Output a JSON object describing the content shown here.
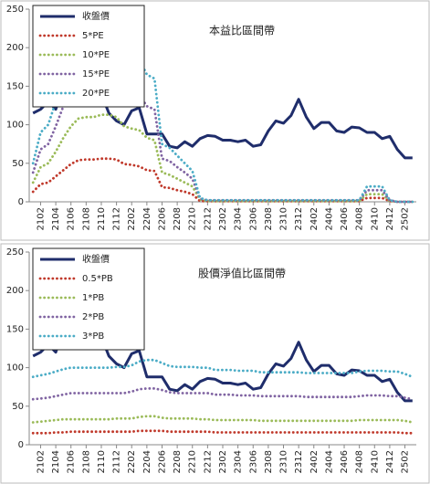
{
  "chart_data": [
    {
      "type": "line",
      "title": "本益比區間帶",
      "categories": [
        null,
        "2102",
        null,
        "2104",
        null,
        "2106",
        null,
        "2108",
        null,
        "2110",
        null,
        "2112",
        null,
        "2202",
        null,
        "2204",
        null,
        "2206",
        null,
        "2208",
        null,
        "2210",
        null,
        "2212",
        null,
        "2302",
        null,
        "2304",
        null,
        "2306",
        null,
        "2308",
        null,
        "2310",
        null,
        "2312",
        null,
        "2402",
        null,
        "2404",
        null,
        "2406",
        null,
        "2408",
        null,
        "2410",
        null,
        "2412",
        null,
        "2502",
        null
      ],
      "ylim": [
        0,
        250
      ],
      "yticks": [
        0,
        50,
        100,
        150,
        200,
        250
      ],
      "grid": false,
      "legend": "upper left",
      "series": [
        {
          "name": "收盤價",
          "color": "#1f2d6b",
          "line_style": "solid",
          "values": [
            115,
            120,
            130,
            120,
            150,
            160,
            150,
            145,
            145,
            140,
            115,
            105,
            100,
            118,
            122,
            88,
            88,
            88,
            72,
            70,
            78,
            72,
            82,
            86,
            85,
            80,
            80,
            78,
            80,
            72,
            74,
            92,
            105,
            102,
            112,
            133,
            110,
            95,
            103,
            103,
            92,
            90,
            97,
            96,
            90,
            90,
            82,
            85,
            68,
            57,
            57
          ]
        },
        {
          "name": "5*PE",
          "color": "#c0392b",
          "line_style": "dotted",
          "values": [
            13,
            23,
            25,
            33,
            41,
            49,
            54,
            55,
            55,
            56,
            56,
            55,
            49,
            48,
            46,
            41,
            40,
            19,
            18,
            15,
            13,
            10,
            1,
            1,
            1,
            1,
            1,
            1,
            1,
            1,
            1,
            1,
            1,
            1,
            1,
            1,
            1,
            1,
            1,
            1,
            1,
            1,
            1,
            1,
            5,
            5,
            5,
            1,
            0,
            0,
            0
          ]
        },
        {
          "name": "10*PE",
          "color": "#9bbb59",
          "line_style": "dotted",
          "values": [
            25,
            45,
            50,
            65,
            83,
            98,
            108,
            110,
            110,
            113,
            113,
            110,
            98,
            95,
            93,
            83,
            80,
            38,
            35,
            30,
            25,
            20,
            3,
            1,
            1,
            1,
            1,
            1,
            1,
            1,
            1,
            1,
            1,
            1,
            1,
            1,
            1,
            1,
            1,
            1,
            1,
            1,
            1,
            1,
            10,
            10,
            10,
            1,
            0,
            0,
            0
          ]
        },
        {
          "name": "15*PE",
          "color": "#8064a2",
          "line_style": "dotted",
          "values": [
            38,
            68,
            75,
            98,
            124,
            146,
            161,
            165,
            165,
            169,
            169,
            165,
            146,
            143,
            139,
            124,
            120,
            56,
            53,
            45,
            38,
            30,
            4,
            2,
            2,
            2,
            2,
            2,
            2,
            2,
            2,
            2,
            2,
            2,
            2,
            2,
            2,
            2,
            2,
            2,
            2,
            2,
            2,
            2,
            15,
            15,
            15,
            2,
            0,
            0,
            0
          ]
        },
        {
          "name": "20*PE",
          "color": "#4bacc6",
          "line_style": "dotted",
          "values": [
            50,
            90,
            100,
            130,
            165,
            195,
            215,
            220,
            220,
            225,
            225,
            220,
            195,
            190,
            185,
            165,
            160,
            75,
            70,
            60,
            50,
            40,
            5,
            2,
            2,
            2,
            2,
            2,
            2,
            2,
            2,
            2,
            2,
            2,
            2,
            2,
            2,
            2,
            2,
            2,
            2,
            2,
            2,
            2,
            20,
            20,
            20,
            2,
            0,
            0,
            0
          ]
        }
      ]
    },
    {
      "type": "line",
      "title": "股價淨值比區間帶",
      "categories": [
        null,
        "2102",
        null,
        "2104",
        null,
        "2106",
        null,
        "2108",
        null,
        "2110",
        null,
        "2112",
        null,
        "2202",
        null,
        "2204",
        null,
        "2206",
        null,
        "2208",
        null,
        "2210",
        null,
        "2212",
        null,
        "2302",
        null,
        "2304",
        null,
        "2306",
        null,
        "2308",
        null,
        "2310",
        null,
        "2312",
        null,
        "2402",
        null,
        "2404",
        null,
        "2406",
        null,
        "2408",
        null,
        "2410",
        null,
        "2412",
        null,
        "2502",
        null
      ],
      "ylim": [
        0,
        250
      ],
      "yticks": [
        0,
        50,
        100,
        150,
        200,
        250
      ],
      "grid": false,
      "legend": "upper left",
      "series": [
        {
          "name": "收盤價",
          "color": "#1f2d6b",
          "line_style": "solid",
          "values": [
            115,
            120,
            130,
            120,
            150,
            160,
            150,
            145,
            145,
            140,
            115,
            105,
            100,
            118,
            122,
            88,
            88,
            88,
            72,
            70,
            78,
            72,
            82,
            86,
            85,
            80,
            80,
            78,
            80,
            72,
            74,
            92,
            105,
            102,
            112,
            133,
            110,
            95,
            103,
            103,
            92,
            90,
            97,
            96,
            90,
            90,
            82,
            85,
            68,
            57,
            57
          ]
        },
        {
          "name": "0.5*PB",
          "color": "#c0392b",
          "line_style": "dotted",
          "values": [
            15,
            15,
            15,
            16,
            16,
            17,
            17,
            17,
            17,
            17,
            17,
            17,
            17,
            17,
            18,
            18,
            18,
            18,
            17,
            17,
            17,
            17,
            17,
            17,
            16,
            16,
            16,
            16,
            16,
            16,
            16,
            16,
            16,
            16,
            16,
            16,
            16,
            16,
            16,
            16,
            16,
            16,
            16,
            16,
            16,
            16,
            16,
            16,
            16,
            15,
            15
          ]
        },
        {
          "name": "1*PB",
          "color": "#9bbb59",
          "line_style": "dotted",
          "values": [
            29,
            30,
            31,
            32,
            33,
            33,
            33,
            33,
            33,
            33,
            33,
            34,
            34,
            34,
            36,
            37,
            37,
            35,
            34,
            34,
            34,
            34,
            33,
            33,
            32,
            32,
            32,
            32,
            32,
            32,
            31,
            31,
            31,
            31,
            31,
            31,
            31,
            31,
            31,
            31,
            31,
            31,
            31,
            32,
            32,
            32,
            32,
            32,
            32,
            31,
            29
          ]
        },
        {
          "name": "2*PB",
          "color": "#8064a2",
          "line_style": "dotted",
          "values": [
            59,
            60,
            61,
            63,
            65,
            67,
            67,
            67,
            67,
            67,
            67,
            67,
            67,
            69,
            72,
            73,
            73,
            71,
            68,
            67,
            67,
            67,
            67,
            67,
            65,
            65,
            65,
            64,
            64,
            64,
            63,
            63,
            63,
            63,
            63,
            63,
            62,
            62,
            62,
            62,
            62,
            62,
            62,
            63,
            64,
            64,
            64,
            63,
            63,
            61,
            59
          ]
        },
        {
          "name": "3*PB",
          "color": "#4bacc6",
          "line_style": "dotted",
          "values": [
            88,
            90,
            92,
            95,
            98,
            100,
            100,
            100,
            100,
            100,
            100,
            101,
            101,
            103,
            108,
            110,
            110,
            106,
            102,
            101,
            101,
            101,
            100,
            100,
            97,
            97,
            97,
            96,
            96,
            96,
            94,
            94,
            94,
            94,
            94,
            94,
            93,
            93,
            93,
            93,
            93,
            93,
            93,
            95,
            96,
            96,
            96,
            95,
            95,
            92,
            88
          ]
        }
      ]
    }
  ]
}
